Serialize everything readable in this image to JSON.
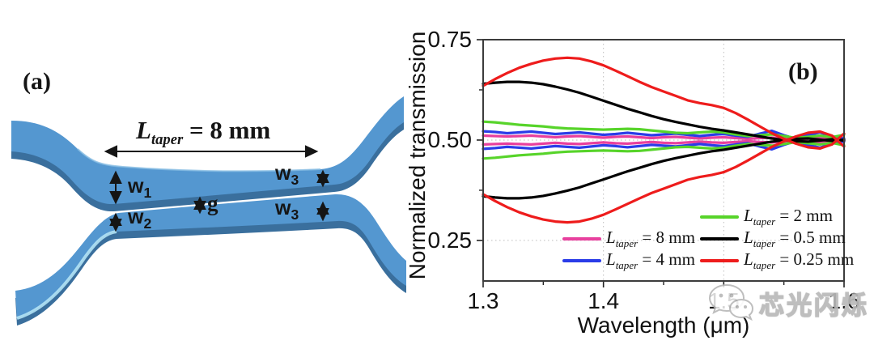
{
  "panel_a": {
    "label": "(a)",
    "taper": {
      "symbol": "L",
      "sub": "taper",
      "rest": " = 8 mm"
    },
    "dims": {
      "w1": {
        "base": "w",
        "sub": "1"
      },
      "w2": {
        "base": "w",
        "sub": "2"
      },
      "w3_upper": {
        "base": "w",
        "sub": "3"
      },
      "w3_lower": {
        "base": "w",
        "sub": "3"
      },
      "gap": "g"
    },
    "waveguide_color": "#5497d0",
    "waveguide_edge_color": "#3a6f9d",
    "waveguide_highlight_color": "#b3e2f4"
  },
  "panel_b": {
    "label": "(b)"
  },
  "watermark": {
    "icon": "wechat-logo-icon",
    "text": "芯光闪烁"
  },
  "chart_data": {
    "type": "line",
    "title": "",
    "xlabel": "Wavelength (μm)",
    "ylabel": "Normalized transmission",
    "xlim": [
      1.3,
      1.6
    ],
    "ylim": [
      0.149,
      0.75
    ],
    "xticks": [
      1.3,
      1.4,
      1.5,
      1.6
    ],
    "xtick_labels": [
      "1.3",
      "1.4",
      "1.5",
      "1.6"
    ],
    "x_minor_ticks": [
      1.35,
      1.45,
      1.55
    ],
    "yticks": [
      0.25,
      0.5,
      0.75
    ],
    "ytick_labels": [
      "0.25",
      "0.50",
      "0.75"
    ],
    "y_minor_ticks": [
      0.375,
      0.625
    ],
    "grid_x": [
      1.4,
      1.5
    ],
    "grid_y": [
      0.25,
      0.5
    ],
    "grid_style": "dotted",
    "legend_position": "inside lower right, two columns",
    "x": [
      1.3,
      1.31,
      1.32,
      1.33,
      1.34,
      1.35,
      1.36,
      1.37,
      1.38,
      1.39,
      1.4,
      1.41,
      1.42,
      1.43,
      1.44,
      1.45,
      1.46,
      1.47,
      1.48,
      1.49,
      1.5,
      1.51,
      1.52,
      1.53,
      1.54,
      1.55,
      1.56,
      1.57,
      1.58,
      1.59,
      1.6
    ],
    "series": [
      {
        "name": "Ltaper = 8 mm",
        "color": "#e8409e",
        "upper": [
          0.511,
          0.51,
          0.509,
          0.51,
          0.511,
          0.509,
          0.507,
          0.509,
          0.51,
          0.508,
          0.506,
          0.508,
          0.509,
          0.507,
          0.505,
          0.507,
          0.508,
          0.506,
          0.504,
          0.506,
          0.507,
          0.505,
          0.503,
          0.505,
          0.506,
          0.504,
          0.502,
          0.504,
          0.505,
          0.503,
          0.502
        ],
        "lower": [
          0.489,
          0.49,
          0.491,
          0.49,
          0.489,
          0.491,
          0.493,
          0.491,
          0.49,
          0.492,
          0.494,
          0.492,
          0.491,
          0.493,
          0.495,
          0.493,
          0.492,
          0.494,
          0.496,
          0.494,
          0.493,
          0.495,
          0.497,
          0.495,
          0.494,
          0.496,
          0.498,
          0.496,
          0.495,
          0.497,
          0.498
        ]
      },
      {
        "name": "Ltaper = 4 mm",
        "color": "#2a3ce8",
        "upper": [
          0.522,
          0.52,
          0.517,
          0.519,
          0.521,
          0.518,
          0.515,
          0.517,
          0.519,
          0.516,
          0.513,
          0.515,
          0.518,
          0.515,
          0.512,
          0.514,
          0.516,
          0.513,
          0.51,
          0.513,
          0.515,
          0.511,
          0.508,
          0.516,
          0.523,
          0.512,
          0.503,
          0.512,
          0.519,
          0.509,
          0.504
        ],
        "lower": [
          0.478,
          0.48,
          0.483,
          0.481,
          0.479,
          0.482,
          0.485,
          0.483,
          0.481,
          0.484,
          0.487,
          0.485,
          0.482,
          0.485,
          0.488,
          0.486,
          0.484,
          0.487,
          0.49,
          0.487,
          0.485,
          0.489,
          0.492,
          0.484,
          0.477,
          0.488,
          0.497,
          0.488,
          0.481,
          0.491,
          0.496
        ]
      },
      {
        "name": "Ltaper = 2 mm",
        "color": "#57d42a",
        "upper": [
          0.546,
          0.544,
          0.541,
          0.538,
          0.536,
          0.534,
          0.531,
          0.529,
          0.528,
          0.527,
          0.526,
          0.527,
          0.528,
          0.527,
          0.524,
          0.521,
          0.518,
          0.517,
          0.519,
          0.521,
          0.519,
          0.514,
          0.51,
          0.512,
          0.514,
          0.51,
          0.505,
          0.508,
          0.511,
          0.507,
          0.513
        ],
        "lower": [
          0.454,
          0.456,
          0.459,
          0.462,
          0.464,
          0.466,
          0.469,
          0.471,
          0.472,
          0.473,
          0.474,
          0.473,
          0.472,
          0.473,
          0.476,
          0.479,
          0.482,
          0.483,
          0.481,
          0.479,
          0.481,
          0.486,
          0.49,
          0.488,
          0.486,
          0.49,
          0.495,
          0.492,
          0.489,
          0.493,
          0.487
        ]
      },
      {
        "name": "Ltaper = 0.5 mm",
        "color": "#000000",
        "upper": [
          0.64,
          0.643,
          0.645,
          0.645,
          0.643,
          0.639,
          0.633,
          0.626,
          0.618,
          0.608,
          0.598,
          0.588,
          0.578,
          0.569,
          0.56,
          0.552,
          0.545,
          0.539,
          0.533,
          0.528,
          0.524,
          0.519,
          0.514,
          0.509,
          0.504,
          0.5,
          0.497,
          0.496,
          0.499,
          0.502,
          0.499
        ],
        "lower": [
          0.36,
          0.357,
          0.355,
          0.355,
          0.357,
          0.361,
          0.367,
          0.374,
          0.382,
          0.392,
          0.402,
          0.412,
          0.422,
          0.431,
          0.44,
          0.448,
          0.455,
          0.461,
          0.467,
          0.472,
          0.476,
          0.481,
          0.486,
          0.491,
          0.496,
          0.5,
          0.503,
          0.504,
          0.501,
          0.498,
          0.501
        ]
      },
      {
        "name": "Ltaper = 0.25 mm",
        "color": "#ee1c1c",
        "upper": [
          0.635,
          0.652,
          0.667,
          0.68,
          0.69,
          0.698,
          0.703,
          0.705,
          0.703,
          0.696,
          0.686,
          0.673,
          0.659,
          0.645,
          0.632,
          0.621,
          0.61,
          0.599,
          0.592,
          0.587,
          0.58,
          0.567,
          0.551,
          0.534,
          0.517,
          0.503,
          0.491,
          0.482,
          0.479,
          0.489,
          0.516
        ],
        "lower": [
          0.365,
          0.348,
          0.333,
          0.32,
          0.31,
          0.302,
          0.297,
          0.295,
          0.297,
          0.304,
          0.314,
          0.327,
          0.341,
          0.355,
          0.368,
          0.379,
          0.39,
          0.401,
          0.408,
          0.413,
          0.42,
          0.433,
          0.449,
          0.466,
          0.483,
          0.497,
          0.509,
          0.518,
          0.521,
          0.511,
          0.484
        ]
      }
    ],
    "legend": [
      {
        "series": 0,
        "prefix": "L",
        "sub": "taper",
        "rest": " = 8 mm",
        "col": 1,
        "row": 1
      },
      {
        "series": 1,
        "prefix": "L",
        "sub": "taper",
        "rest": " = 4 mm",
        "col": 1,
        "row": 2
      },
      {
        "series": 2,
        "prefix": "L",
        "sub": "taper",
        "rest": " = 2 mm",
        "col": 2,
        "row": 0
      },
      {
        "series": 3,
        "prefix": "L",
        "sub": "taper",
        "rest": " = 0.5 mm",
        "col": 2,
        "row": 1
      },
      {
        "series": 4,
        "prefix": "L",
        "sub": "taper",
        "rest": " = 0.25 mm",
        "col": 2,
        "row": 2
      }
    ]
  }
}
